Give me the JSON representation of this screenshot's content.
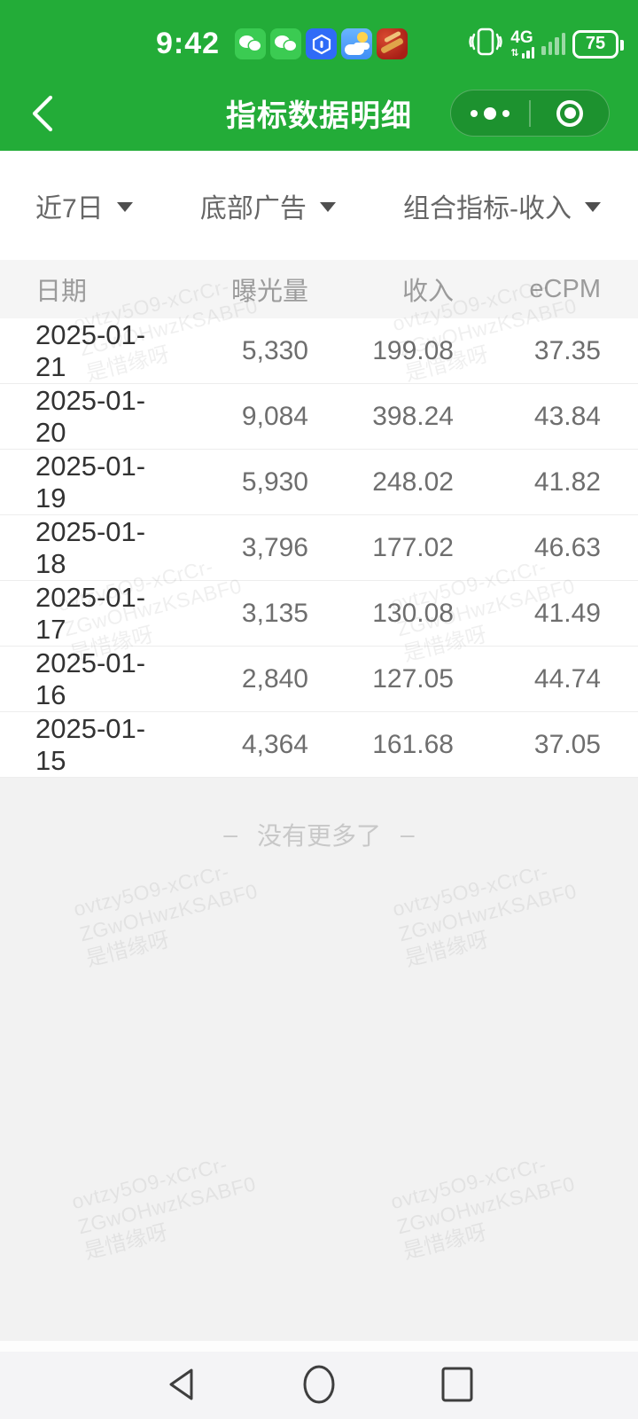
{
  "status_bar": {
    "time": "9:42",
    "notification_icons": [
      "wechat-icon",
      "wechat-icon",
      "hexagon-app-icon",
      "weather-icon",
      "red-app-icon"
    ],
    "network": "4G",
    "battery_percent": "75"
  },
  "header": {
    "title": "指标数据明细",
    "capsule": {
      "more_icon": "more-dots-icon",
      "close_icon": "circle-dot-icon"
    }
  },
  "filters": {
    "date_range": "近7日",
    "ad_position": "底部广告",
    "metric": "组合指标-收入"
  },
  "table": {
    "columns": [
      "日期",
      "曝光量",
      "收入",
      "eCPM"
    ],
    "rows": [
      [
        "2025-01-21",
        "5,330",
        "199.08",
        "37.35"
      ],
      [
        "2025-01-20",
        "9,084",
        "398.24",
        "43.84"
      ],
      [
        "2025-01-19",
        "5,930",
        "248.02",
        "41.82"
      ],
      [
        "2025-01-18",
        "3,796",
        "177.02",
        "46.63"
      ],
      [
        "2025-01-17",
        "3,135",
        "130.08",
        "41.49"
      ],
      [
        "2025-01-16",
        "2,840",
        "127.05",
        "44.74"
      ],
      [
        "2025-01-15",
        "4,364",
        "161.68",
        "37.05"
      ]
    ]
  },
  "footer": {
    "dash": "–",
    "no_more_text": "没有更多了"
  },
  "watermark": {
    "lines": [
      "ovtzy5O9-xCrCr-",
      "ZGwOHwzKSABF0",
      "是惜缘呀"
    ]
  },
  "colors": {
    "brand_green": "#23ac38",
    "capsule_green": "#1e9531",
    "page_bg": "#f2f2f2",
    "table_header_bg": "#f5f5f5",
    "text_dark": "#323232",
    "text_gray": "#6e6e6e",
    "text_light": "#9b9b9b",
    "divider": "#ededed",
    "no_more": "#c8c8c8"
  }
}
